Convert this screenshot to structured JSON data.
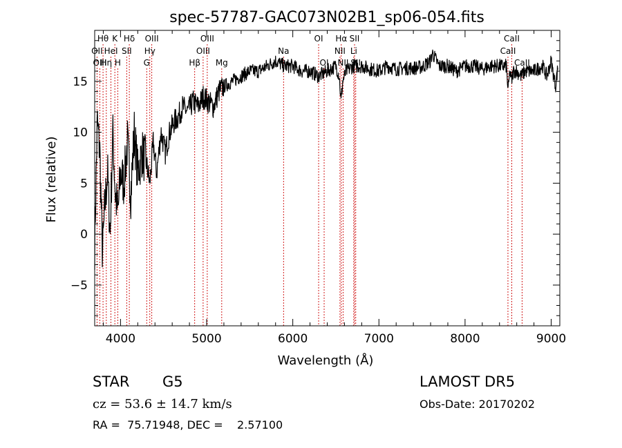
{
  "chart_data": {
    "type": "line",
    "title": "spec-57787-GAC073N02B1_sp06-054.fits",
    "xlabel": "Wavelength (Å)",
    "ylabel": "Flux (relative)",
    "xlim": [
      3700,
      9100
    ],
    "ylim": [
      -9,
      20
    ],
    "xticks": [
      4000,
      5000,
      6000,
      7000,
      8000,
      9000
    ],
    "yticks": [
      -5,
      0,
      5,
      10,
      15
    ],
    "grid": false,
    "legend": "none",
    "spectrum_nodes": {
      "x": [
        3700,
        3730,
        3760,
        3790,
        3820,
        3850,
        3880,
        3910,
        3940,
        3970,
        4000,
        4040,
        4080,
        4120,
        4160,
        4200,
        4250,
        4300,
        4340,
        4380,
        4420,
        4470,
        4520,
        4570,
        4620,
        4670,
        4720,
        4780,
        4840,
        4900,
        4960,
        5020,
        5080,
        5140,
        5200,
        5300,
        5400,
        5500,
        5600,
        5700,
        5800,
        5900,
        6000,
        6100,
        6200,
        6300,
        6400,
        6500,
        6540,
        6560,
        6580,
        6620,
        6700,
        6800,
        6900,
        7000,
        7100,
        7200,
        7300,
        7400,
        7500,
        7600,
        7620,
        7700,
        7800,
        7900,
        8000,
        8100,
        8200,
        8300,
        8400,
        8480,
        8500,
        8520,
        8540,
        8560,
        8600,
        8650,
        8700,
        8800,
        8900,
        8950,
        9000,
        9050,
        9080
      ],
      "y": [
        -1,
        11,
        8,
        -2,
        3,
        6,
        0,
        10,
        4,
        2,
        6,
        5,
        9,
        4,
        10,
        6,
        8,
        7,
        5,
        9,
        6,
        10,
        8,
        10,
        11,
        11.5,
        12.5,
        12,
        13,
        12.5,
        13.5,
        13,
        12.5,
        14,
        14.5,
        15,
        15.5,
        16,
        16,
        16.5,
        17,
        16.5,
        16.5,
        16,
        16,
        15.5,
        16,
        16.5,
        15.5,
        13,
        15,
        16,
        16.5,
        16.5,
        16.2,
        16,
        16.5,
        16.2,
        16.3,
        16.3,
        16.4,
        17,
        17.8,
        16.5,
        16.5,
        16,
        16.5,
        16.5,
        16.2,
        16.5,
        16.5,
        16.5,
        14,
        16,
        15,
        16,
        16,
        15.5,
        16,
        16,
        16.5,
        15.5,
        17,
        14.5,
        16.5
      ]
    },
    "line_markers": [
      {
        "label": "Hθ",
        "wl": 3797,
        "row": 1
      },
      {
        "label": "OII",
        "wl": 3727,
        "row": 2
      },
      {
        "label": "OIII",
        "wl": 3760,
        "row": 3
      },
      {
        "label": "K",
        "wl": 3934,
        "row": 1
      },
      {
        "label": "HeI",
        "wl": 3889,
        "row": 2
      },
      {
        "label": "Hη",
        "wl": 3835,
        "row": 3
      },
      {
        "label": "Hδ",
        "wl": 4102,
        "row": 1
      },
      {
        "label": "SII",
        "wl": 4072,
        "row": 2
      },
      {
        "label": "H",
        "wl": 3968,
        "row": 3
      },
      {
        "label": "OIII",
        "wl": 4363,
        "row": 1
      },
      {
        "label": "Hγ",
        "wl": 4340,
        "row": 2
      },
      {
        "label": "G",
        "wl": 4304,
        "row": 3
      },
      {
        "label": "OIII",
        "wl": 5007,
        "row": 1
      },
      {
        "label": "OIII",
        "wl": 4959,
        "row": 2
      },
      {
        "label": "Hβ",
        "wl": 4861,
        "row": 3
      },
      {
        "label": "Mg",
        "wl": 5175,
        "row": 3
      },
      {
        "label": "Na",
        "wl": 5893,
        "row": 2
      },
      {
        "label": "OI",
        "wl": 6300,
        "row": 1
      },
      {
        "label": "OI",
        "wl": 6364,
        "row": 3
      },
      {
        "label": "Hα",
        "wl": 6563,
        "row": 1
      },
      {
        "label": "NII",
        "wl": 6548,
        "row": 2
      },
      {
        "label": "NII",
        "wl": 6584,
        "row": 3
      },
      {
        "label": "SII",
        "wl": 6717,
        "row": 1
      },
      {
        "label": "Li",
        "wl": 6708,
        "row": 2
      },
      {
        "label": "SII",
        "wl": 6731,
        "row": 3
      },
      {
        "label": "CaII",
        "wl": 8542,
        "row": 1
      },
      {
        "label": "CaII",
        "wl": 8498,
        "row": 2
      },
      {
        "label": "CaII",
        "wl": 8662,
        "row": 3
      }
    ],
    "marker_color": "#cc0000",
    "line_color": "#000000"
  },
  "info": {
    "class": "STAR",
    "subclass": "G5",
    "survey": "LAMOST DR5",
    "cz": "cz = 53.6 ± 14.7 km/s",
    "obs_date": "Obs-Date: 20170202",
    "coords": "RA =  75.71948, DEC =    2.57100"
  }
}
